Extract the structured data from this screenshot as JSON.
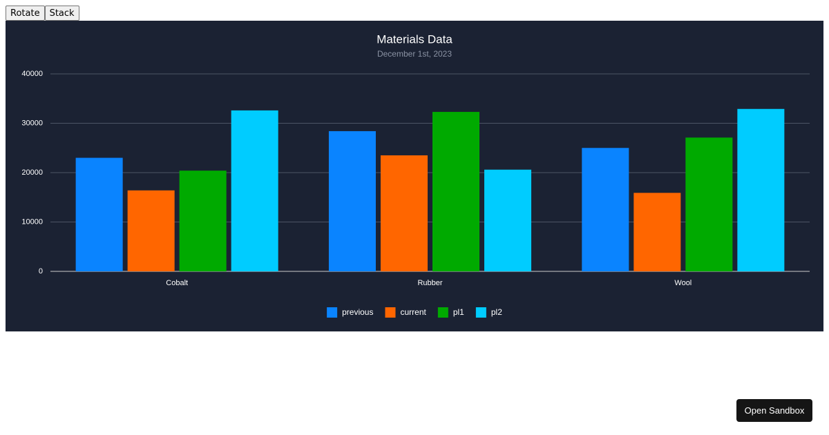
{
  "buttons": [
    "Rotate",
    "Stack"
  ],
  "sandbox_button": "Open Sandbox",
  "chart_data": {
    "type": "bar",
    "title": "Materials Data",
    "subtitle": "December 1st, 2023",
    "categories": [
      "Cobalt",
      "Rubber",
      "Wool"
    ],
    "series": [
      {
        "name": "previous",
        "color": "#0a84ff",
        "values": [
          23000,
          28400,
          25000
        ]
      },
      {
        "name": "current",
        "color": "#ff6600",
        "values": [
          16400,
          23500,
          15900
        ]
      },
      {
        "name": "pl1",
        "color": "#00aa00",
        "values": [
          20400,
          32300,
          27100
        ]
      },
      {
        "name": "pl2",
        "color": "#00ccff",
        "values": [
          32600,
          20600,
          32900
        ]
      }
    ],
    "ylim": [
      0,
      40000
    ],
    "yticks": [
      0,
      10000,
      20000,
      30000,
      40000
    ],
    "grid": true,
    "legend": "bottom"
  }
}
